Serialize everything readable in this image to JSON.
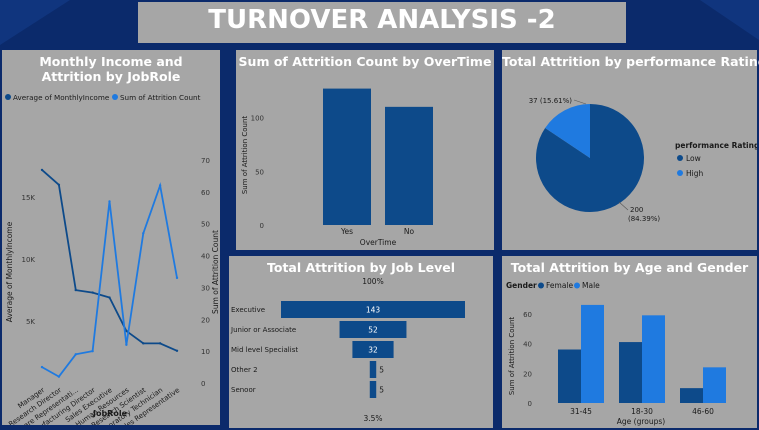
{
  "page": {
    "title": "TURNOVER ANALYSIS -2"
  },
  "colors": {
    "background": "#0b2a6b",
    "panel": "#a6a6a6",
    "dark_blue": "#0d4a8a",
    "light_blue": "#1f7ae0",
    "title_text": "#ffffff"
  },
  "chart_data": [
    {
      "id": "income-attrition",
      "type": "line",
      "title": "Monthly Income and Attrition by JobRole",
      "xlabel": "JobRole",
      "ylabel": "Average of MonthlyIncome",
      "y2label": "Sum of Attrition Count",
      "legend_position": "top",
      "categories": [
        "Manager",
        "Research Director",
        "Healthcare Representati...",
        "Manufacturing Director",
        "Sales Executive",
        "Human Resources",
        "Research Scientist",
        "Laboratory Technician",
        "Sales Representative"
      ],
      "y_ticks": [
        "5K",
        "10K",
        "15K"
      ],
      "y2_ticks": [
        "0",
        "10",
        "20",
        "30",
        "40",
        "50",
        "60",
        "70"
      ],
      "ylim": [
        0,
        18000
      ],
      "y2lim": [
        0,
        70
      ],
      "series": [
        {
          "name": "Average of MonthlyIncome",
          "axis": "left",
          "color": "#0d4a8a",
          "values": [
            17200,
            16000,
            7500,
            7300,
            6900,
            4200,
            3200,
            3200,
            2600
          ]
        },
        {
          "name": "Sum of Attrition Count",
          "axis": "right",
          "color": "#1f7ae0",
          "values": [
            5,
            2,
            9,
            10,
            57,
            12,
            47,
            62,
            33
          ]
        }
      ]
    },
    {
      "id": "attrition-overtime",
      "type": "bar",
      "title": "Sum of Attrition Count by OverTime",
      "xlabel": "OverTime",
      "ylabel": "Sum of Attrition Count",
      "y_ticks": [
        "0",
        "50",
        "100"
      ],
      "ylim": [
        0,
        135
      ],
      "categories": [
        "Yes",
        "No"
      ],
      "values": [
        127,
        110
      ],
      "color": "#0d4a8a"
    },
    {
      "id": "attrition-performance",
      "type": "pie",
      "title": "Total Attrition by performance Rating",
      "legend_title": "performance Rating",
      "legend_position": "right",
      "slices": [
        {
          "name": "Low",
          "value": 200,
          "label_value": "200",
          "label_pct": "(84.39%)",
          "color": "#0d4a8a"
        },
        {
          "name": "High",
          "value": 37,
          "label_value": "37 (15.61%)",
          "label_pct": "",
          "color": "#1f7ae0"
        }
      ]
    },
    {
      "id": "attrition-joblevel",
      "type": "funnel",
      "title": "Total Attrition by Job Level",
      "top_label": "100%",
      "bottom_label": "3.5%",
      "categories": [
        "Executive",
        "Junior or Associate",
        "Mid level Specialist",
        "Other 2",
        "Senoor"
      ],
      "values": [
        143,
        52,
        32,
        5,
        5
      ],
      "color": "#0d4a8a"
    },
    {
      "id": "attrition-age-gender",
      "type": "bar",
      "title": "Total Attrition by Age and Gender",
      "xlabel": "Age (groups)",
      "ylabel": "Sum of Attrition Count",
      "legend_title": "Gender",
      "legend_position": "top-left",
      "y_ticks": [
        "0",
        "20",
        "40",
        "60"
      ],
      "ylim": [
        0,
        72
      ],
      "categories": [
        "31-45",
        "18-30",
        "46-60"
      ],
      "series": [
        {
          "name": "Female",
          "color": "#0d4a8a",
          "values": [
            36,
            41,
            10
          ]
        },
        {
          "name": "Male",
          "color": "#1f7ae0",
          "values": [
            66,
            59,
            24
          ]
        }
      ]
    }
  ]
}
